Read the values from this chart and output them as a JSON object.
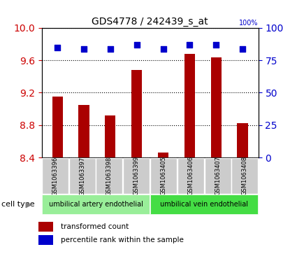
{
  "title": "GDS4778 / 242439_s_at",
  "samples": [
    "GSM1063396",
    "GSM1063397",
    "GSM1063398",
    "GSM1063399",
    "GSM1063405",
    "GSM1063406",
    "GSM1063407",
    "GSM1063408"
  ],
  "bar_values": [
    9.15,
    9.05,
    8.92,
    9.48,
    8.46,
    9.68,
    9.64,
    8.82
  ],
  "percentile_values": [
    85,
    84,
    84,
    87,
    84,
    87,
    87,
    84
  ],
  "ylim_left": [
    8.4,
    10.0
  ],
  "ylim_right": [
    0,
    100
  ],
  "yticks_left": [
    8.4,
    8.8,
    9.2,
    9.6,
    10.0
  ],
  "yticks_right": [
    0,
    25,
    50,
    75,
    100
  ],
  "bar_color": "#AA0000",
  "dot_color": "#0000CC",
  "cell_type1_label": "umbilical artery endothelial",
  "cell_type2_label": "umbilical vein endothelial",
  "cell_type1_color": "#99EE99",
  "cell_type2_color": "#44DD44",
  "legend_bar_label": "transformed count",
  "legend_dot_label": "percentile rank within the sample",
  "cell_type_label": "cell type",
  "left_tick_color": "#CC0000",
  "right_tick_color": "#0000CC",
  "sample_box_color": "#CCCCCC",
  "bar_width": 0.4,
  "dot_size": 30
}
